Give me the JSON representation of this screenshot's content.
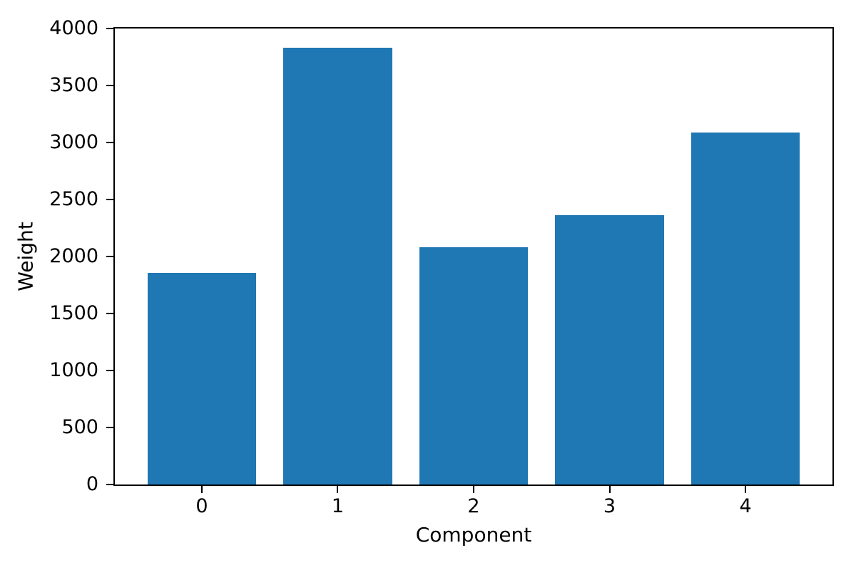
{
  "chart_data": {
    "type": "bar",
    "title": "",
    "xlabel": "Component",
    "ylabel": "Weight",
    "categories": [
      "0",
      "1",
      "2",
      "3",
      "4"
    ],
    "values": [
      1855,
      3830,
      2080,
      2365,
      3090
    ],
    "ylim": [
      0,
      4000
    ],
    "yticks": [
      "0",
      "500",
      "1000",
      "1500",
      "2000",
      "2500",
      "3000",
      "3500",
      "4000"
    ],
    "bar_color": "#1f77b4",
    "axis_color": "#000000",
    "background_color": "#ffffff",
    "grid": false,
    "legend": false,
    "bar_width_fraction": 0.8
  }
}
